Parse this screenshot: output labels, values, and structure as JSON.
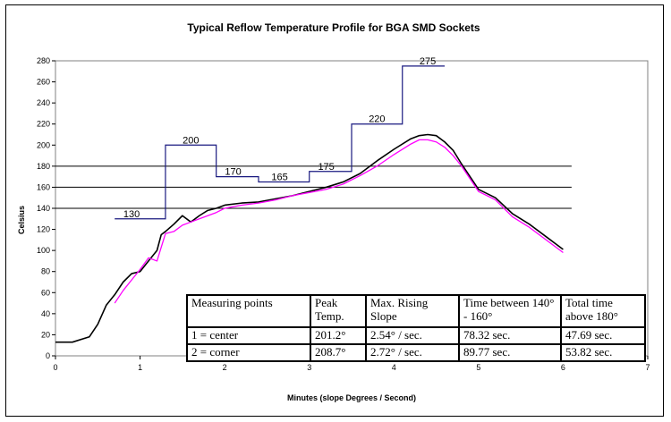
{
  "chart_data": {
    "type": "line",
    "title": "Typical Reflow Temperature Profile for BGA SMD Sockets",
    "xlabel": "Minutes (slope Degrees / Second)",
    "ylabel": "Celsius",
    "xlim": [
      0,
      7
    ],
    "ylim": [
      0,
      280
    ],
    "xticks": [
      0,
      1,
      2,
      3,
      4,
      5,
      6,
      7
    ],
    "yticks": [
      0,
      20,
      40,
      60,
      80,
      100,
      120,
      140,
      160,
      180,
      200,
      220,
      240,
      260,
      280
    ],
    "legend": "none",
    "reference_lines": [
      140,
      160,
      180
    ],
    "reference_line_xrange": [
      0,
      6.1
    ],
    "setpoint_profile": {
      "color": "#1a1a80",
      "x": [
        0.7,
        1.3,
        1.3,
        1.9,
        1.9,
        2.4,
        2.4,
        3.0,
        3.0,
        3.5,
        3.5,
        4.1,
        4.1,
        4.6
      ],
      "y": [
        130,
        130,
        200,
        200,
        170,
        170,
        165,
        165,
        175,
        175,
        220,
        220,
        275,
        275
      ],
      "labels": [
        {
          "text": "130",
          "x": 0.9,
          "y": 130
        },
        {
          "text": "200",
          "x": 1.6,
          "y": 200
        },
        {
          "text": "170",
          "x": 2.1,
          "y": 170
        },
        {
          "text": "165",
          "x": 2.65,
          "y": 165
        },
        {
          "text": "175",
          "x": 3.2,
          "y": 175
        },
        {
          "text": "220",
          "x": 3.8,
          "y": 220
        },
        {
          "text": "275",
          "x": 4.4,
          "y": 275
        }
      ]
    },
    "series": [
      {
        "color": "#000000",
        "x": [
          0,
          0.2,
          0.4,
          0.5,
          0.6,
          0.7,
          0.8,
          0.9,
          1.0,
          1.1,
          1.2,
          1.25,
          1.3,
          1.4,
          1.5,
          1.6,
          1.7,
          1.8,
          1.9,
          2.0,
          2.2,
          2.4,
          2.6,
          2.8,
          3.0,
          3.2,
          3.4,
          3.6,
          3.8,
          4.0,
          4.2,
          4.3,
          4.4,
          4.5,
          4.6,
          4.7,
          4.8,
          5.0,
          5.2,
          5.4,
          5.6,
          5.8,
          6.0
        ],
        "y": [
          13,
          13,
          18,
          30,
          48,
          58,
          70,
          78,
          80,
          90,
          100,
          115,
          118,
          125,
          133,
          127,
          133,
          138,
          140,
          143,
          145,
          146,
          149,
          152,
          156,
          160,
          165,
          173,
          185,
          196,
          206,
          209,
          210,
          209,
          203,
          195,
          182,
          158,
          150,
          135,
          125,
          113,
          101
        ]
      },
      {
        "color": "#ff00ff",
        "x": [
          0.7,
          0.8,
          0.9,
          1.0,
          1.1,
          1.2,
          1.25,
          1.3,
          1.4,
          1.5,
          1.6,
          1.7,
          1.8,
          1.9,
          2.0,
          2.2,
          2.4,
          2.6,
          2.8,
          3.0,
          3.2,
          3.4,
          3.6,
          3.8,
          4.0,
          4.2,
          4.3,
          4.4,
          4.5,
          4.6,
          4.7,
          4.8,
          5.0,
          5.2,
          5.4,
          5.6,
          5.8,
          6.0
        ],
        "y": [
          50,
          62,
          72,
          82,
          93,
          90,
          103,
          116,
          118,
          124,
          127,
          130,
          133,
          136,
          140,
          143,
          145,
          148,
          152,
          155,
          158,
          163,
          171,
          180,
          191,
          201,
          205,
          205,
          203,
          198,
          190,
          180,
          156,
          148,
          132,
          122,
          110,
          98
        ]
      }
    ]
  },
  "table": {
    "headers": [
      "Measuring points",
      "Peak Temp.",
      "Max. Rising Slope",
      "Time between 140° - 160°",
      "Total time above 180°"
    ],
    "rows": [
      [
        "1 = center",
        "201.2°",
        "2.54° / sec.",
        "78.32 sec.",
        "47.69 sec."
      ],
      [
        "2 = corner",
        "208.7°",
        "2.72° / sec.",
        "89.77 sec.",
        "53.82 sec."
      ]
    ]
  }
}
